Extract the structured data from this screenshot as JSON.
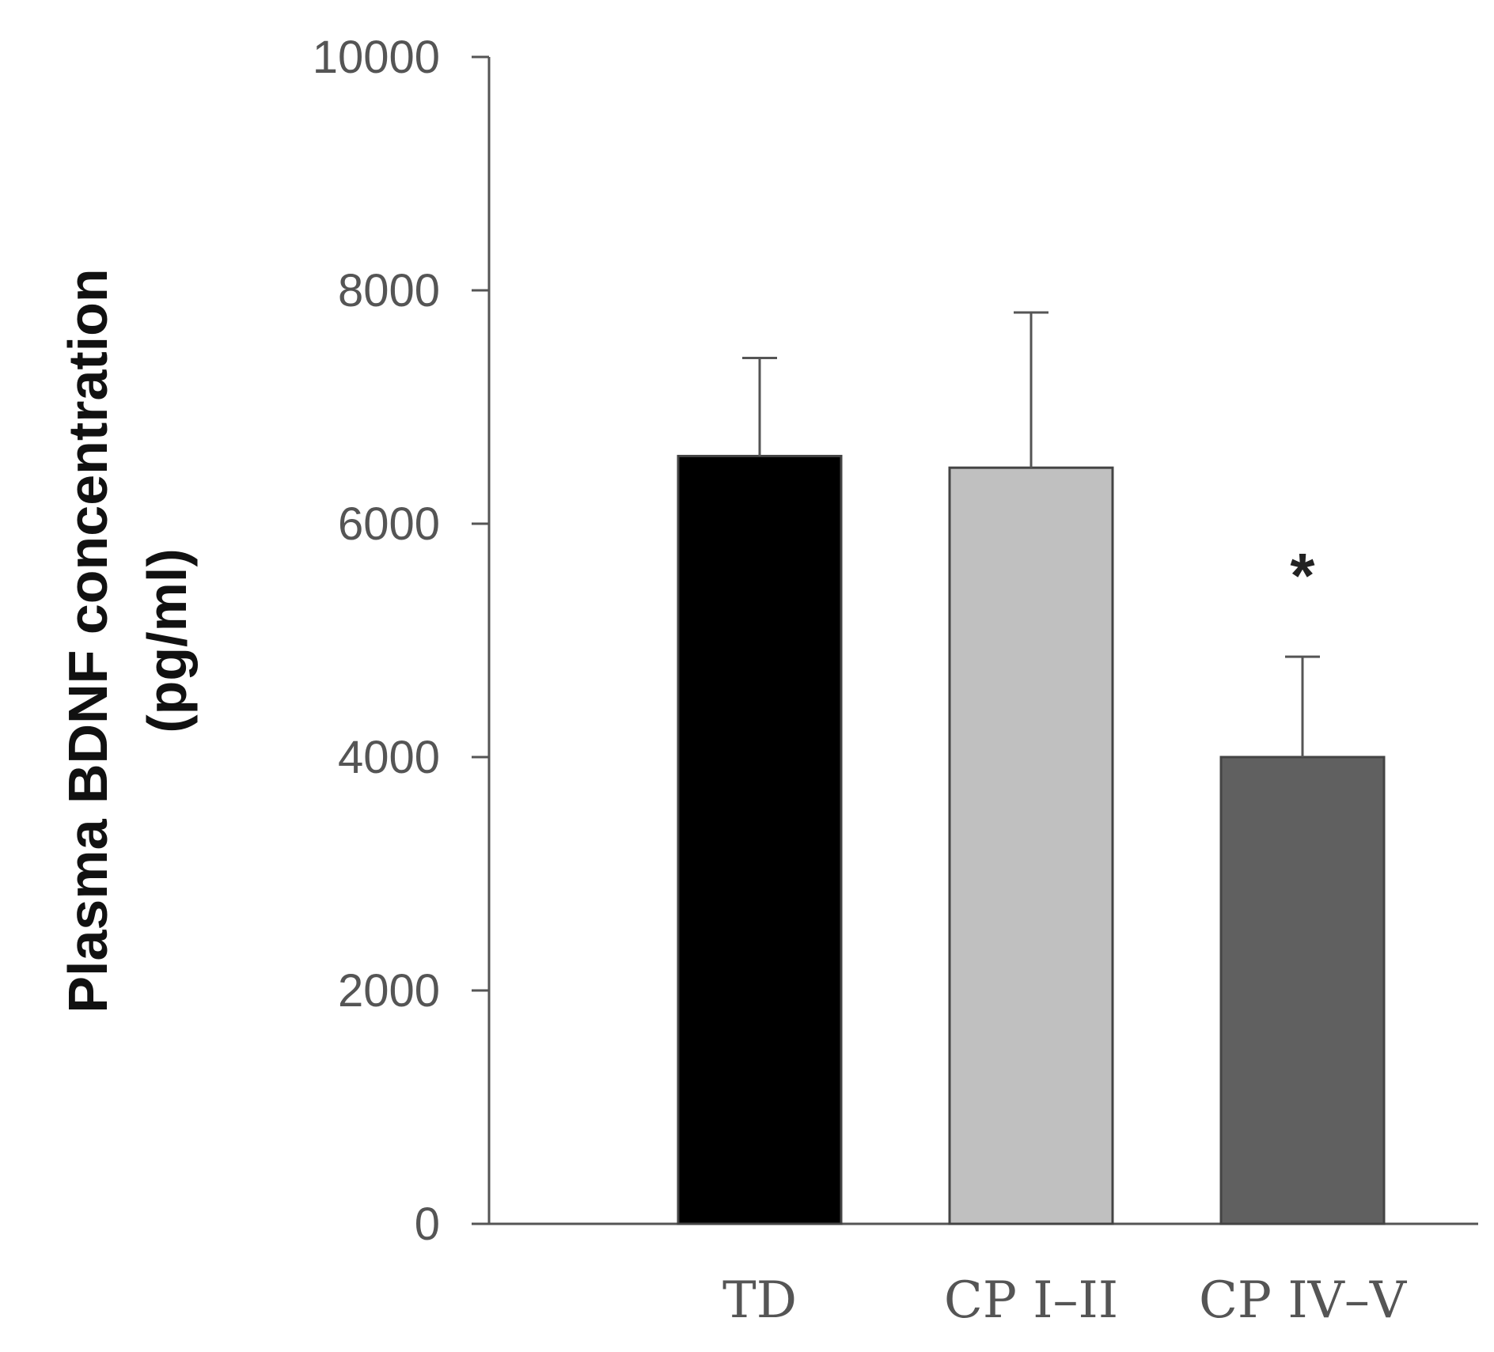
{
  "chart_data": {
    "type": "bar",
    "title": "",
    "xlabel": "",
    "ylabel_line1": "Plasma BDNF concentration",
    "ylabel_line2": "(pg/ml)",
    "ylim": [
      0,
      10000
    ],
    "yticks": [
      0,
      2000,
      4000,
      6000,
      8000,
      10000
    ],
    "categories": [
      "TD",
      "CP I–II",
      "CP IV–V"
    ],
    "values": [
      6580,
      6480,
      4000
    ],
    "error_upper": [
      840,
      1330,
      860
    ],
    "colors": [
      "#000000",
      "#c0c0c0",
      "#606060"
    ],
    "annotations": [
      {
        "category_index": 2,
        "text": "*"
      }
    ],
    "grid": false
  }
}
